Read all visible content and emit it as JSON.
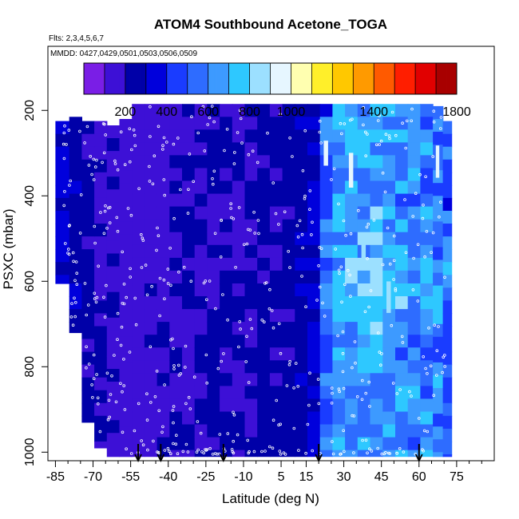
{
  "chart_data": {
    "type": "heatmap",
    "title": "ATOM4 Southbound Acetone_TOGA",
    "flights_label": "Flts: 2,3,4,5,6,7",
    "dates_label": "MMDD: 0427,0429,0501,0503,0506,0509",
    "xlabel": "Latitude (deg N)",
    "ylabel": "PSXC (mbar)",
    "xlim": [
      -88,
      90
    ],
    "ylim": [
      1020,
      50
    ],
    "x_ticks": [
      -85,
      -70,
      -55,
      -40,
      -25,
      -10,
      5,
      15,
      30,
      45,
      60,
      75
    ],
    "y_ticks": [
      200,
      400,
      600,
      800,
      1000
    ],
    "colorbar": {
      "range": [
        0,
        1800
      ],
      "labels": [
        200,
        400,
        600,
        800,
        1000,
        1400,
        1800
      ],
      "boundaries": [
        0,
        100,
        200,
        300,
        400,
        500,
        600,
        700,
        800,
        900,
        1000,
        1100,
        1200,
        1300,
        1400,
        1500,
        1600,
        1700,
        1800
      ],
      "colors": [
        "#7a1ee6",
        "#3d10d6",
        "#0000a8",
        "#0000dc",
        "#1a3cff",
        "#2e6cff",
        "#3d9aff",
        "#2ec8ff",
        "#9ce0ff",
        "#e6f6ff",
        "#ffffb0",
        "#ffef2a",
        "#ffc800",
        "#ff9a00",
        "#ff5a00",
        "#ff1e00",
        "#e10000",
        "#a80000"
      ]
    },
    "flight_markers_lat": [
      -52,
      -43,
      -18,
      20,
      60
    ],
    "columns": [
      {
        "lat": -82,
        "top": 225,
        "bottom": 605,
        "base": 300
      },
      {
        "lat": -77,
        "top": 215,
        "bottom": 720,
        "base": 260
      },
      {
        "lat": -72,
        "top": 225,
        "bottom": 930,
        "base": 230
      },
      {
        "lat": -67,
        "top": 225,
        "bottom": 990,
        "base": 200
      },
      {
        "lat": -62,
        "top": 235,
        "bottom": 1010,
        "base": 170
      },
      {
        "lat": -57,
        "top": 220,
        "bottom": 1010,
        "base": 145
      },
      {
        "lat": -52,
        "top": 185,
        "bottom": 1010,
        "base": 130
      },
      {
        "lat": -47,
        "top": 185,
        "bottom": 1010,
        "base": 150
      },
      {
        "lat": -42,
        "top": 185,
        "bottom": 1010,
        "base": 165
      },
      {
        "lat": -37,
        "top": 185,
        "bottom": 1010,
        "base": 175
      },
      {
        "lat": -32,
        "top": 185,
        "bottom": 1010,
        "base": 200
      },
      {
        "lat": -27,
        "top": 185,
        "bottom": 1010,
        "base": 190
      },
      {
        "lat": -22,
        "top": 185,
        "bottom": 1010,
        "base": 200
      },
      {
        "lat": -17,
        "top": 185,
        "bottom": 1010,
        "base": 210
      },
      {
        "lat": -12,
        "top": 185,
        "bottom": 1010,
        "base": 205
      },
      {
        "lat": -7,
        "top": 185,
        "bottom": 1010,
        "base": 215
      },
      {
        "lat": -2,
        "top": 185,
        "bottom": 1010,
        "base": 220
      },
      {
        "lat": 3,
        "top": 185,
        "bottom": 1010,
        "base": 225
      },
      {
        "lat": 8,
        "top": 185,
        "bottom": 1010,
        "base": 245
      },
      {
        "lat": 13,
        "top": 185,
        "bottom": 1010,
        "base": 265
      },
      {
        "lat": 18,
        "top": 185,
        "bottom": 1010,
        "base": 320
      },
      {
        "lat": 23,
        "top": 185,
        "bottom": 1010,
        "base": 520
      },
      {
        "lat": 28,
        "top": 185,
        "bottom": 1010,
        "base": 600
      },
      {
        "lat": 33,
        "top": 185,
        "bottom": 1010,
        "base": 630
      },
      {
        "lat": 38,
        "top": 185,
        "bottom": 1010,
        "base": 640
      },
      {
        "lat": 43,
        "top": 185,
        "bottom": 1010,
        "base": 660
      },
      {
        "lat": 48,
        "top": 185,
        "bottom": 1010,
        "base": 650
      },
      {
        "lat": 53,
        "top": 185,
        "bottom": 1010,
        "base": 640
      },
      {
        "lat": 58,
        "top": 185,
        "bottom": 1010,
        "base": 620
      },
      {
        "lat": 63,
        "top": 185,
        "bottom": 1010,
        "base": 600
      },
      {
        "lat": 68,
        "top": 190,
        "bottom": 1010,
        "base": 570
      },
      {
        "lat": 71,
        "top": 225,
        "bottom": 1010,
        "base": 520
      }
    ]
  }
}
